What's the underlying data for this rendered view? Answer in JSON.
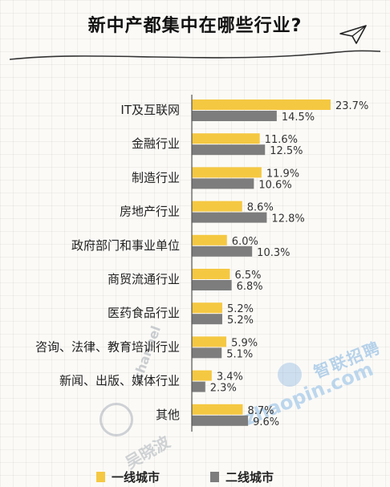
{
  "chart_data": {
    "type": "bar",
    "orientation": "horizontal",
    "title": "新中产都集中在哪些行业?",
    "categories": [
      "IT及互联网",
      "金融行业",
      "制造行业",
      "房地产行业",
      "政府部门和事业单位",
      "商贸流通行业",
      "医药食品行业",
      "咨询、法律、教育培训行业",
      "新闻、出版、媒体行业",
      "其他"
    ],
    "series": [
      {
        "name": "一线城市",
        "color": "#f5c842",
        "values": [
          23.7,
          11.6,
          11.9,
          8.6,
          6.0,
          6.5,
          5.2,
          5.9,
          3.4,
          8.7
        ],
        "labels": [
          "23.7%",
          "11.6%",
          "11.9%",
          "8.6%",
          "6.0%",
          "6.5%",
          "5.2%",
          "5.9%",
          "3.4%",
          "8.7%"
        ]
      },
      {
        "name": "二线城市",
        "color": "#7d7d7d",
        "values": [
          14.5,
          12.5,
          10.6,
          12.8,
          10.3,
          6.8,
          5.2,
          5.1,
          2.3,
          9.6
        ],
        "labels": [
          "14.5%",
          "12.5%",
          "10.6%",
          "12.8%",
          "10.3%",
          "6.8%",
          "5.2%",
          "5.1%",
          "2.3%",
          "9.6%"
        ]
      }
    ],
    "xlim": [
      0,
      23.7
    ],
    "grid": false,
    "legend_position": "bottom"
  },
  "watermarks": {
    "zhilian_cn": "智联招聘",
    "zhilian_en": "zhaopin.com",
    "channel": "channel",
    "wu": "吴晓波"
  },
  "icons": [
    "paper-plane-icon"
  ]
}
